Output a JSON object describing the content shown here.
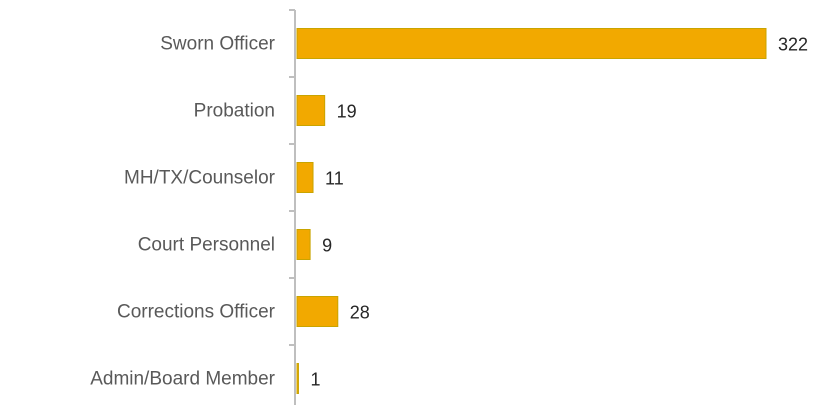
{
  "chart_data": {
    "type": "bar",
    "orientation": "horizontal",
    "categories": [
      "Sworn Officer",
      "Probation",
      "MH/TX/Counselor",
      "Court Personnel",
      "Corrections Officer",
      "Admin/Board Member"
    ],
    "values": [
      322,
      19,
      11,
      9,
      28,
      1
    ],
    "color": "#f2a900"
  }
}
